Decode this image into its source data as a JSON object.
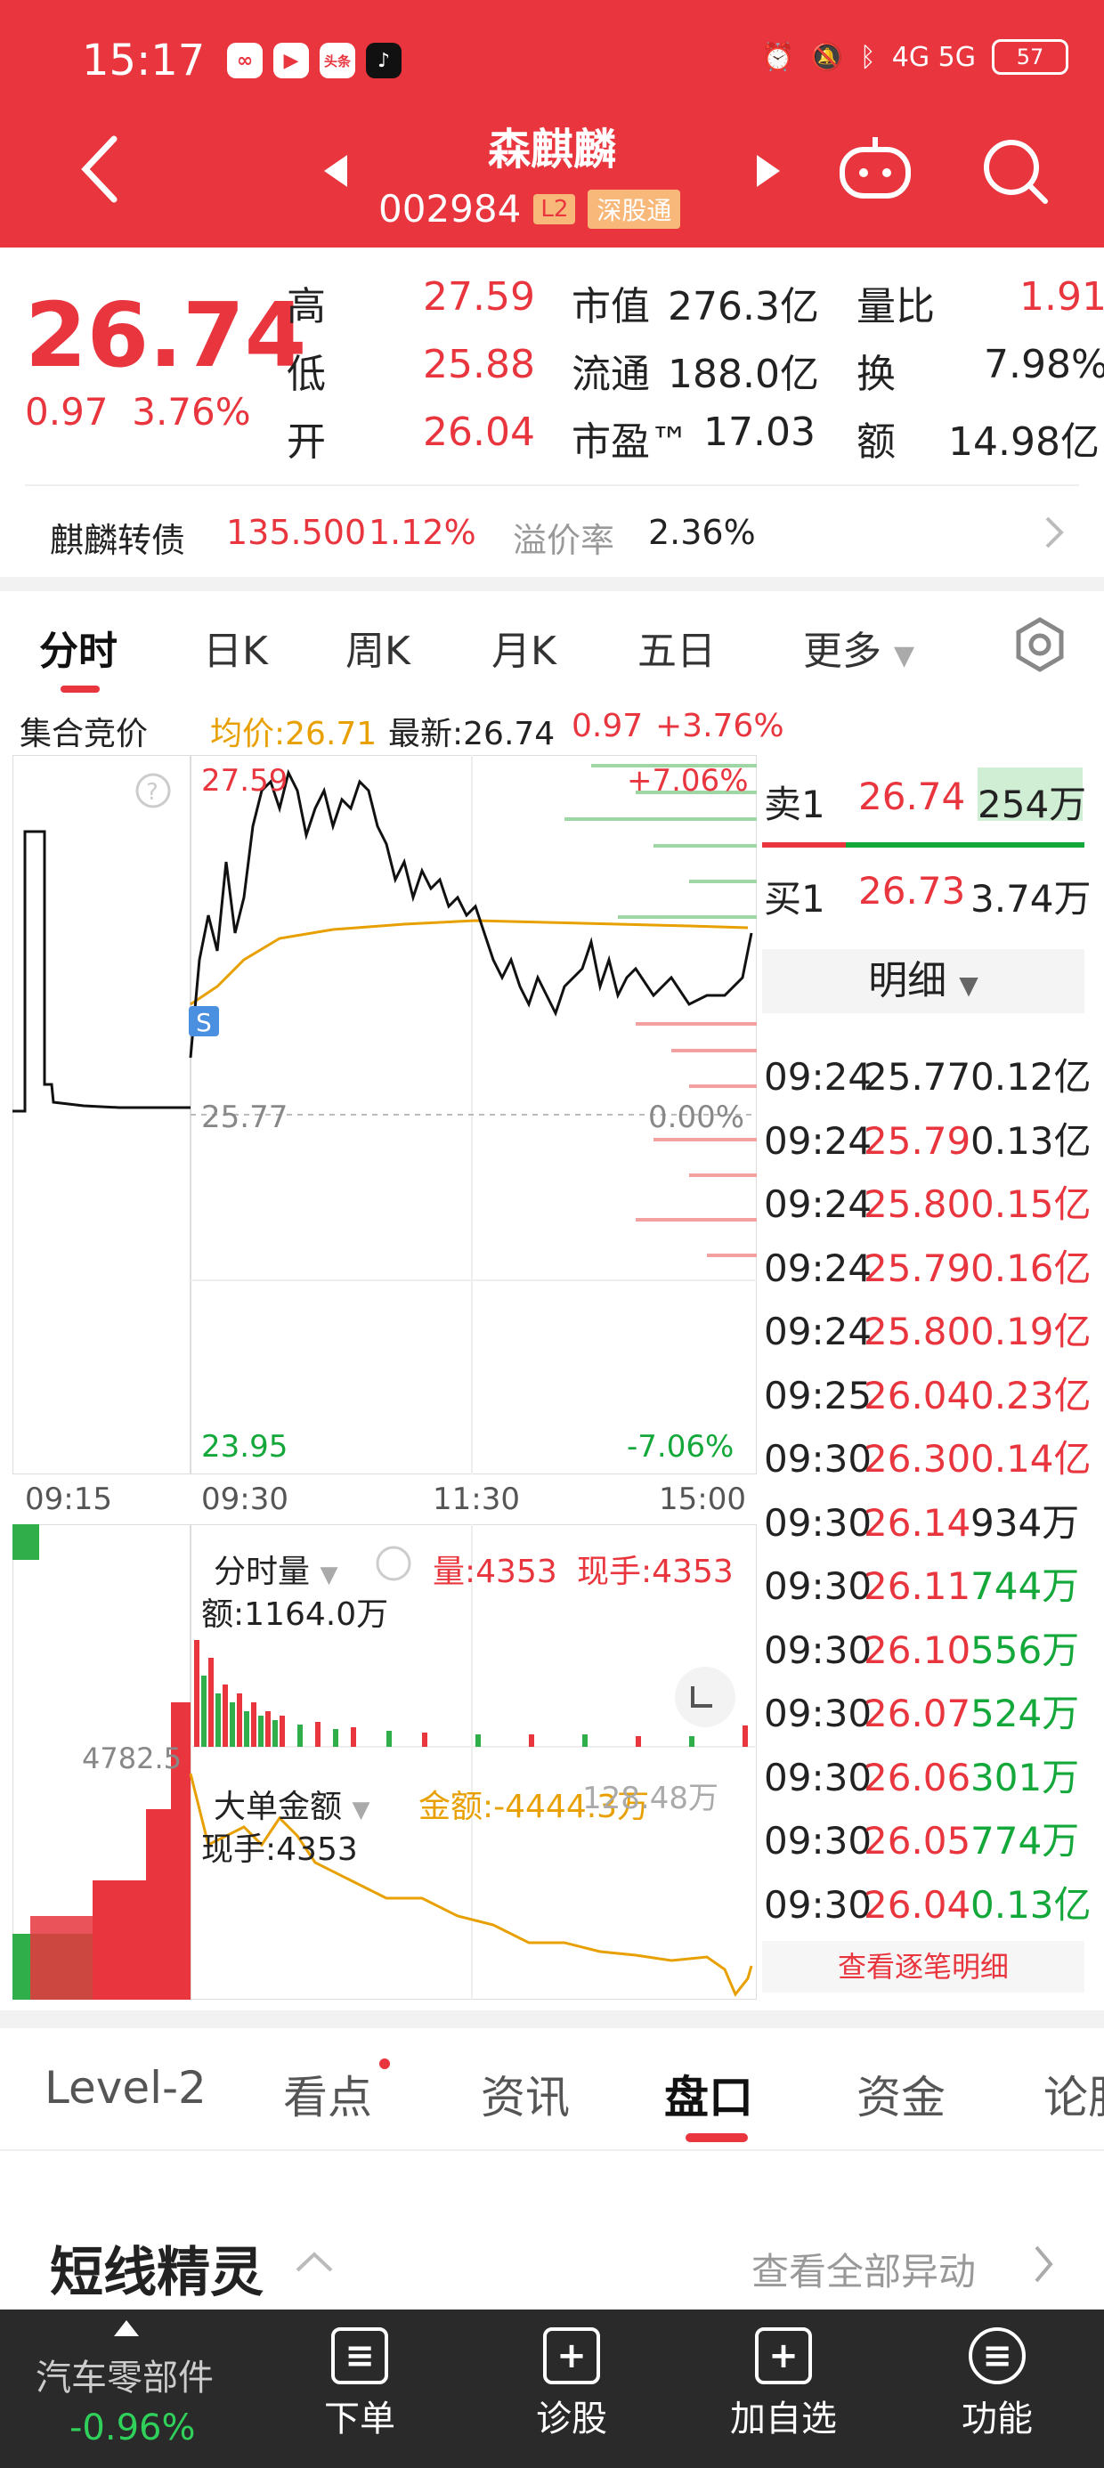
{
  "status": {
    "time": "15:17",
    "apps": [
      "∞",
      "▶",
      "头条",
      "♪"
    ],
    "network": "4G 5G",
    "battery": "57"
  },
  "header": {
    "title": "森麒麟",
    "code": "002984",
    "level_badge": "L2",
    "connect_badge": "深股通"
  },
  "quote": {
    "price": "26.74",
    "change": "0.97",
    "change_pct": "3.76%",
    "high_label": "高",
    "high": "27.59",
    "low_label": "低",
    "low": "25.88",
    "open_label": "开",
    "open": "26.04",
    "mcap_label": "市值",
    "mcap": "276.3亿",
    "float_label": "流通",
    "float": "188.0亿",
    "pe_label": "市盈™",
    "pe": "17.03",
    "vr_label": "量比",
    "vr": "1.91",
    "turnover_label": "换",
    "turnover": "7.98%",
    "amount_label": "额",
    "amount": "14.98亿"
  },
  "bond": {
    "name": "麒麟转债",
    "price": "135.500",
    "pct": "1.12%",
    "premium_label": "溢价率",
    "premium": "2.36%"
  },
  "chart_tabs": [
    "分时",
    "日K",
    "周K",
    "月K",
    "五日",
    "更多"
  ],
  "legend": {
    "auction": "集合竞价",
    "avg": "均价:26.71",
    "latest": "最新:26.74",
    "chg": "0.97",
    "pct": "+3.76%"
  },
  "chart": {
    "hi_price": "27.59",
    "mid_price": "25.77",
    "lo_price": "23.95",
    "hi_pct": "+7.06%",
    "mid_pct": "0.00%",
    "lo_pct": "-7.06%",
    "t0": "09:15",
    "t1": "09:30",
    "t2": "11:30",
    "t3": "15:00",
    "marker": "S"
  },
  "orderbook": {
    "sell1_label": "卖1",
    "sell1_price": "26.74",
    "sell1_vol": "254万",
    "buy1_label": "买1",
    "buy1_price": "26.73",
    "buy1_vol": "3.74万",
    "detail_label": "明细"
  },
  "ticks": [
    {
      "t": "09:24",
      "p": "25.77",
      "v": "0.12亿"
    },
    {
      "t": "09:24",
      "p": "25.79",
      "v": "0.13亿"
    },
    {
      "t": "09:24",
      "p": "25.80",
      "v": "0.15亿"
    },
    {
      "t": "09:24",
      "p": "25.79",
      "v": "0.16亿"
    },
    {
      "t": "09:24",
      "p": "25.80",
      "v": "0.19亿"
    },
    {
      "t": "09:25",
      "p": "26.04",
      "v": "0.23亿"
    },
    {
      "t": "09:30",
      "p": "26.30",
      "v": "0.14亿"
    },
    {
      "t": "09:30",
      "p": "26.14",
      "v": "934万"
    },
    {
      "t": "09:30",
      "p": "26.11",
      "v": "744万"
    },
    {
      "t": "09:30",
      "p": "26.10",
      "v": "556万"
    },
    {
      "t": "09:30",
      "p": "26.07",
      "v": "524万"
    },
    {
      "t": "09:30",
      "p": "26.06",
      "v": "301万"
    },
    {
      "t": "09:30",
      "p": "26.05",
      "v": "774万"
    },
    {
      "t": "09:30",
      "p": "26.04",
      "v": "0.13亿"
    }
  ],
  "tick_link": "查看逐笔明细",
  "volume": {
    "label": "分时量",
    "vol": "量:4353",
    "cur": "现手:4353",
    "amt": "额:1164.0万",
    "auction_max": "4782.5"
  },
  "bigorder": {
    "label": "大单金额",
    "amt": "金额:-4444.3万",
    "cur": "现手:4353",
    "right_val": "128.48万"
  },
  "bottom_tabs": [
    "Level-2",
    "看点",
    "资讯",
    "盘口",
    "资金",
    "论股"
  ],
  "section": {
    "title": "短线精灵",
    "link": "查看全部异动"
  },
  "bottom_bar": {
    "sector": "汽车零部件",
    "sector_pct": "-0.96%",
    "items": [
      "下单",
      "诊股",
      "加自选",
      "功能"
    ]
  }
}
